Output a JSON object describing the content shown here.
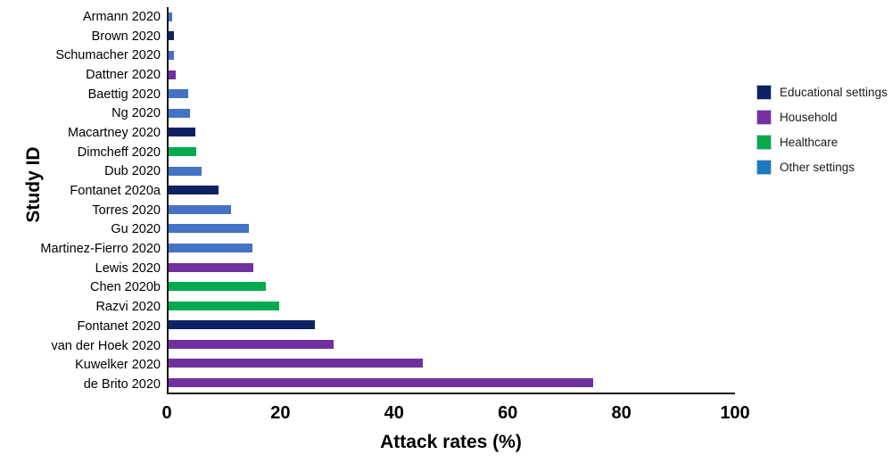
{
  "chart_data": {
    "type": "bar",
    "orientation": "horizontal",
    "xlabel": "Attack rates (%)",
    "ylabel": "Study ID",
    "xlim": [
      0,
      100
    ],
    "x_ticks": [
      0,
      20,
      40,
      60,
      80,
      100
    ],
    "grid": false,
    "legend_position": "right-outside",
    "categories": [
      "Armann 2020",
      "Brown 2020",
      "Schumacher 2020",
      "Dattner 2020",
      "Baettig 2020",
      "Ng 2020",
      "Macartney 2020",
      "Dimcheff 2020",
      "Dub 2020",
      "Fontanet 2020a",
      "Torres 2020",
      "Gu 2020",
      "Martinez-Fierro 2020",
      "Lewis 2020",
      "Chen 2020b",
      "Razvi 2020",
      "Fontanet 2020",
      "van der Hoek 2020",
      "Kuwelker 2020",
      "de Brito 2020"
    ],
    "values": [
      0.6,
      1.0,
      0.9,
      1.2,
      3.5,
      3.8,
      4.7,
      4.9,
      5.8,
      8.8,
      11.0,
      14.2,
      14.8,
      15.0,
      17.2,
      19.6,
      25.9,
      29.2,
      44.9,
      75.0
    ],
    "groups": [
      "Other settings",
      "Educational settings",
      "Other settings",
      "Household",
      "Other settings",
      "Other settings",
      "Educational settings",
      "Healthcare",
      "Other settings",
      "Educational settings",
      "Other settings",
      "Other settings",
      "Other settings",
      "Household",
      "Healthcare",
      "Healthcare",
      "Educational settings",
      "Household",
      "Household",
      "Household"
    ],
    "bar_colors": {
      "Educational settings": "#0E2263",
      "Household": "#7030A0",
      "Healthcare": "#00AB4E",
      "Other settings": "#4472C4"
    },
    "legend": [
      {
        "label": "Educational settings",
        "color": "#0E2263"
      },
      {
        "label": "Household",
        "color": "#7A2FA2"
      },
      {
        "label": "Healthcare",
        "color": "#0AA84D"
      },
      {
        "label": "Other settings",
        "color": "#1E79BF"
      }
    ],
    "axis_color": "#1A1A1A"
  }
}
